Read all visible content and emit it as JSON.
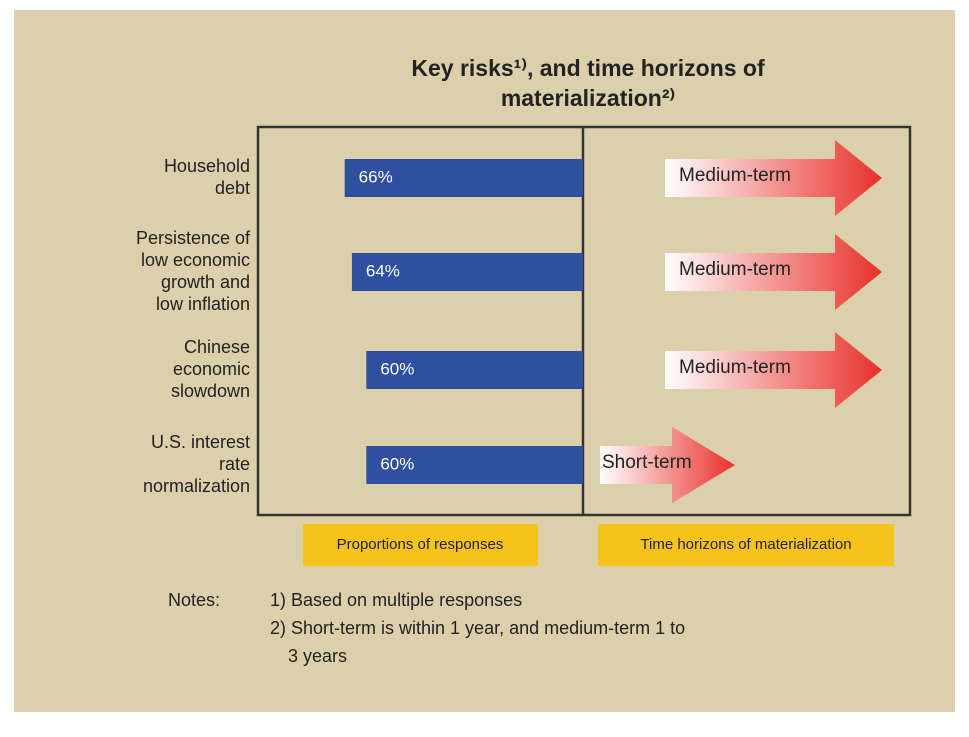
{
  "chart_data": {
    "type": "bar",
    "title": [
      "Key risks¹⁾, and time horizons of",
      "materialization²⁾"
    ],
    "categories": [
      [
        "Household",
        "debt"
      ],
      [
        "Persistence of",
        "low economic",
        "growth and",
        "low inflation"
      ],
      [
        "Chinese",
        "economic",
        "slowdown"
      ],
      [
        "U.S. interest",
        "rate",
        "normalization"
      ]
    ],
    "values": [
      66,
      64,
      60,
      60
    ],
    "value_labels": [
      "66%",
      "64%",
      "60%",
      "60%"
    ],
    "color": "#2f4f9f",
    "xlim": [
      0,
      90
    ],
    "horizons": [
      "Medium-term",
      "Medium-term",
      "Medium-term",
      "Short-term"
    ],
    "arrow_color": "#e8302a",
    "x_label": "Proportions of responses",
    "horizon_label": "Time horizons of materialization",
    "notes": {
      "head": "Notes:",
      "items": [
        [
          "1) Based on multiple responses"
        ],
        [
          "2) Short-term is within 1 year, and medium-term 1 to",
          "3 years"
        ]
      ]
    }
  }
}
